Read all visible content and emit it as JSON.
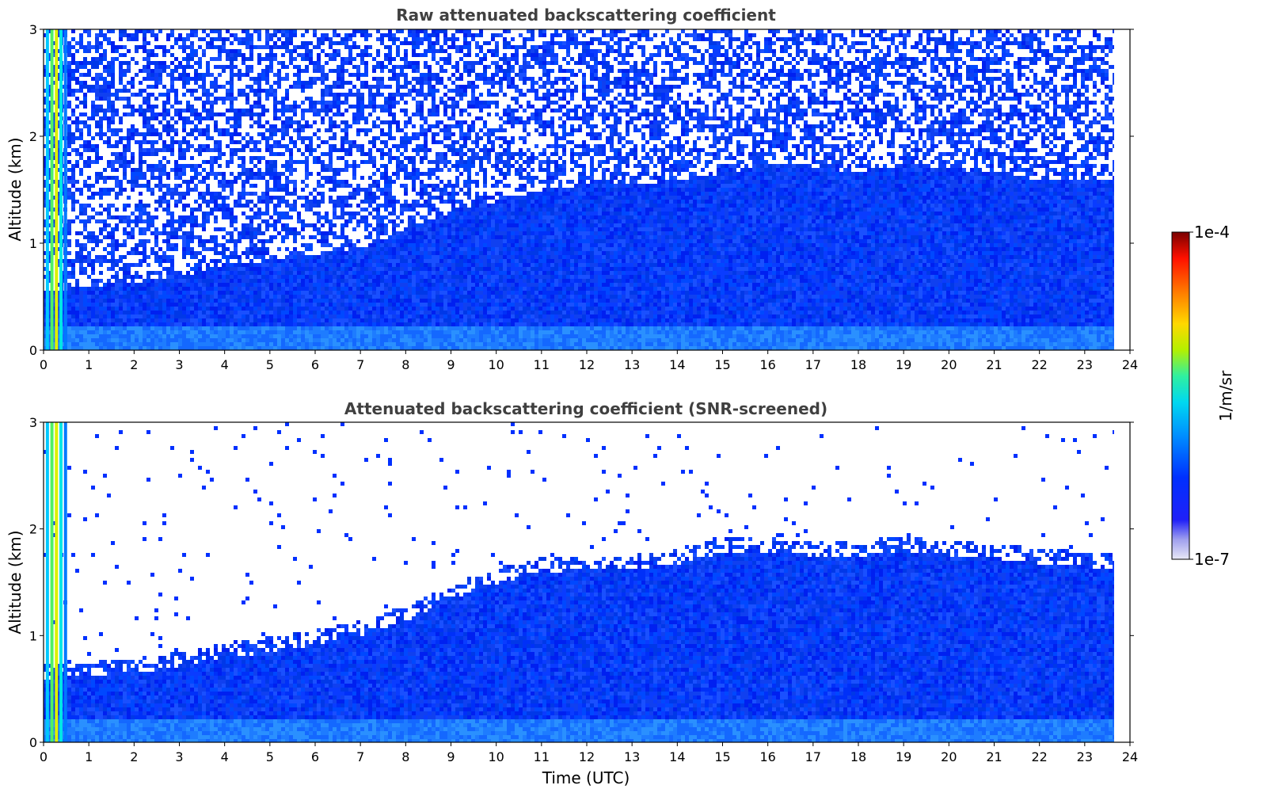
{
  "chart_data": [
    {
      "type": "heatmap",
      "title": "Raw attenuated backscattering coefficient",
      "xlabel": "",
      "ylabel": "Altitude (km)",
      "xlim": [
        0,
        24
      ],
      "ylim": [
        0,
        3
      ],
      "x_ticks": [
        "0",
        "1",
        "2",
        "3",
        "4",
        "5",
        "6",
        "7",
        "8",
        "9",
        "10",
        "11",
        "12",
        "13",
        "14",
        "15",
        "16",
        "17",
        "18",
        "19",
        "20",
        "21",
        "22",
        "23",
        "24"
      ],
      "y_ticks": [
        "0",
        "1",
        "2",
        "3"
      ],
      "data_end_hour": 23.65,
      "boundary_layer_top_km": {
        "x": [
          0,
          1,
          2,
          3,
          4,
          5,
          6,
          7,
          8,
          9,
          10,
          11,
          12,
          13,
          14,
          15,
          16,
          17,
          18,
          19,
          20,
          21,
          22,
          23,
          23.65
        ],
        "y": [
          0.55,
          0.6,
          0.62,
          0.7,
          0.78,
          0.85,
          0.9,
          0.95,
          1.15,
          1.3,
          1.4,
          1.5,
          1.55,
          1.55,
          1.6,
          1.65,
          1.75,
          1.72,
          1.65,
          1.75,
          1.7,
          1.65,
          1.6,
          1.6,
          1.6
        ]
      },
      "noise": "high"
    },
    {
      "type": "heatmap",
      "title": "Attenuated backscattering coefficient (SNR-screened)",
      "xlabel": "Time (UTC)",
      "ylabel": "Altitude (km)",
      "xlim": [
        0,
        24
      ],
      "ylim": [
        0,
        3
      ],
      "x_ticks": [
        "0",
        "1",
        "2",
        "3",
        "4",
        "5",
        "6",
        "7",
        "8",
        "9",
        "10",
        "11",
        "12",
        "13",
        "14",
        "15",
        "16",
        "17",
        "18",
        "19",
        "20",
        "21",
        "22",
        "23",
        "24"
      ],
      "y_ticks": [
        "0",
        "1",
        "2",
        "3"
      ],
      "data_end_hour": 23.65,
      "boundary_layer_top_km": {
        "x": [
          0,
          1,
          2,
          3,
          4,
          5,
          6,
          7,
          8,
          9,
          10,
          11,
          12,
          13,
          14,
          15,
          16,
          17,
          18,
          19,
          20,
          21,
          22,
          23,
          23.65
        ],
        "y": [
          0.6,
          0.62,
          0.65,
          0.72,
          0.8,
          0.85,
          0.92,
          1.0,
          1.15,
          1.35,
          1.5,
          1.6,
          1.62,
          1.62,
          1.68,
          1.78,
          1.78,
          1.75,
          1.75,
          1.8,
          1.75,
          1.72,
          1.68,
          1.65,
          1.62
        ]
      },
      "noise": "screened"
    }
  ],
  "colorbar": {
    "label": "1/m/sr",
    "min_label": "1e-7",
    "max_label": "1e-4",
    "colors": [
      "#e6e6f5",
      "#c8c8f0",
      "#a0a0f0",
      "#7878f0",
      "#3c3cf5",
      "#0000ff",
      "#0028ff",
      "#0050ff",
      "#0078ff",
      "#00a0ff",
      "#00c8ff",
      "#00e6e6",
      "#00f0b4",
      "#50f064",
      "#a0f000",
      "#dcf000",
      "#ffdc00",
      "#ffb400",
      "#ff8200",
      "#ff5000",
      "#ff1e00",
      "#e60000",
      "#b40000",
      "#820000"
    ]
  }
}
